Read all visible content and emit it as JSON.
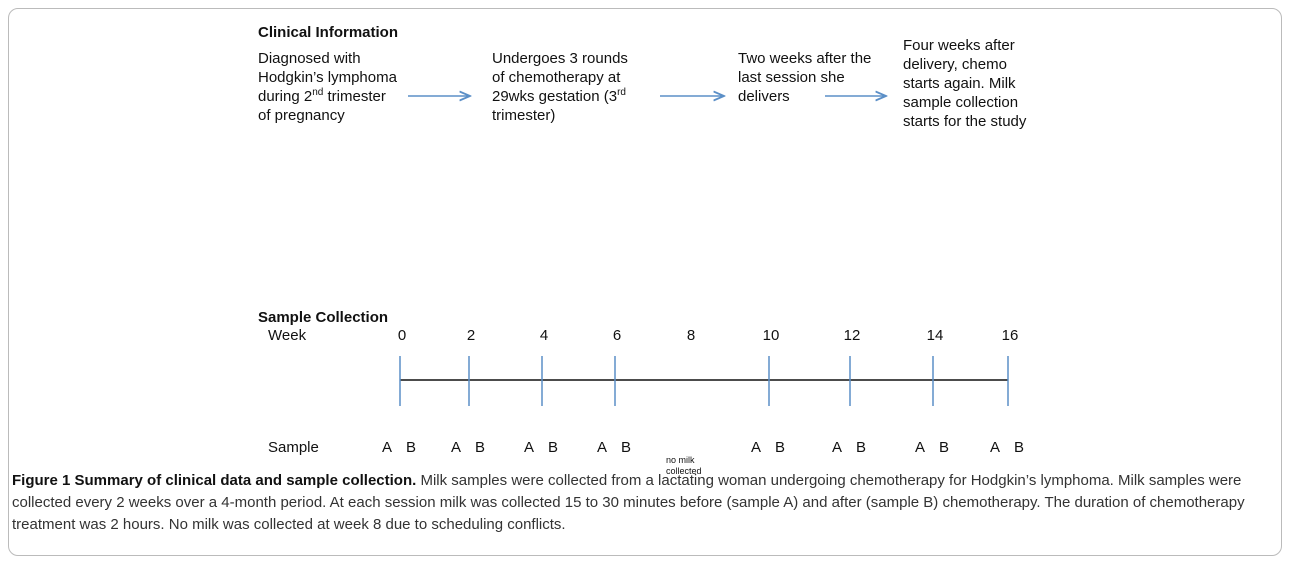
{
  "clinical": {
    "title": "Clinical Information",
    "steps": [
      [
        {
          "text": "Diagnosed with Hodgkin’s lymphoma during 2"
        },
        {
          "sup": "nd"
        },
        {
          "text": " trimester of pregnancy"
        }
      ],
      [
        {
          "text": "Undergoes 3 rounds of chemotherapy at 29wks gestation (3"
        },
        {
          "sup": "rd"
        },
        {
          "text": " trimester)"
        }
      ],
      [
        {
          "text": "Two weeks after the last session she delivers"
        }
      ],
      [
        {
          "text": "Four weeks after delivery, chemo starts again. Milk sample collection starts for the study"
        }
      ]
    ]
  },
  "sample_collection": {
    "title": "Sample Collection",
    "week_label": "Week",
    "sample_label": "Sample",
    "weeks": [
      {
        "week": 0,
        "samples": [
          "A",
          "B"
        ]
      },
      {
        "week": 2,
        "samples": [
          "A",
          "B"
        ]
      },
      {
        "week": 4,
        "samples": [
          "A",
          "B"
        ]
      },
      {
        "week": 6,
        "samples": [
          "A",
          "B"
        ]
      },
      {
        "week": 8,
        "note": "no milk collected"
      },
      {
        "week": 10,
        "samples": [
          "A",
          "B"
        ]
      },
      {
        "week": 12,
        "samples": [
          "A",
          "B"
        ]
      },
      {
        "week": 14,
        "samples": [
          "A",
          "B"
        ]
      },
      {
        "week": 16,
        "samples": [
          "A",
          "B"
        ]
      }
    ]
  },
  "caption": {
    "label": "Figure 1 Summary of clinical data and sample collection.",
    "text": " Milk samples were collected from a lactating woman undergoing chemotherapy for Hodgkin’s lymphoma. Milk samples were collected every 2 weeks over a 4-month period. At each session milk was collected 15 to 30 minutes before (sample A) and after (sample B) chemotherapy. The duration of chemotherapy treatment was 2 hours. No milk was collected at week 8 due to scheduling conflicts."
  }
}
